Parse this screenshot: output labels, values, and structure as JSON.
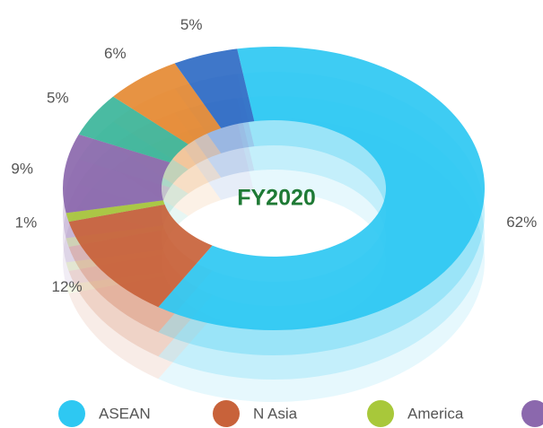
{
  "chart_data": {
    "type": "donut3d",
    "center_label": "FY2020",
    "categories": [
      "ASEAN",
      "N Asia",
      "America",
      null,
      null,
      null,
      null
    ],
    "values": [
      62,
      12,
      1,
      9,
      5,
      6,
      5
    ],
    "value_labels": [
      "62%",
      "12%",
      "1%",
      "9%",
      "5%",
      "6%",
      "5%"
    ],
    "colors": [
      "#2ec8f2",
      "#c8623a",
      "#a8c83a",
      "#8b68ad",
      "#3bb59a",
      "#e58a33",
      "#2f6bc4"
    ]
  }
}
